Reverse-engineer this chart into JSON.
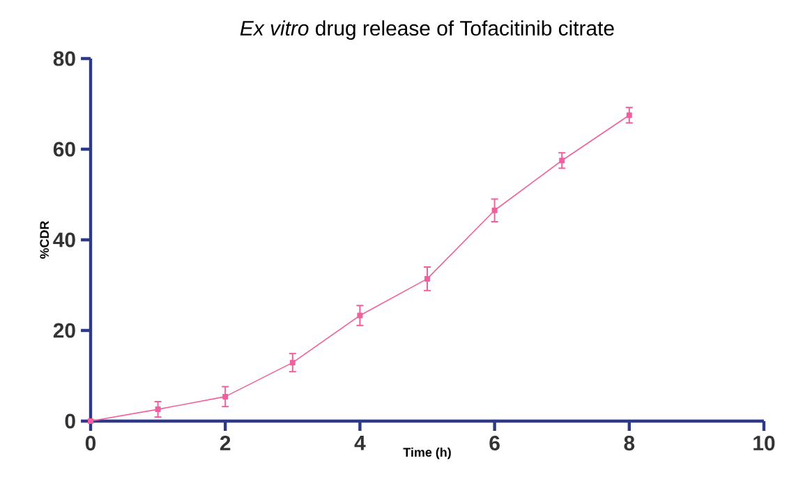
{
  "chart_data": {
    "type": "line",
    "title": "*Ex vitro* drug release of Tofacitinib citrate",
    "xlabel": "Time (h)",
    "ylabel": "%CDR",
    "x": [
      0,
      1,
      2,
      3,
      4,
      5,
      6,
      7,
      8
    ],
    "series": [
      {
        "color": "#f0609e",
        "values": [
          0,
          2.6,
          5.4,
          12.9,
          23.3,
          31.4,
          46.5,
          57.5,
          67.5
        ],
        "errors": [
          null,
          1.7,
          2.2,
          2,
          2.2,
          2.6,
          2.5,
          1.7,
          1.7
        ]
      }
    ],
    "xlim": [
      0,
      10
    ],
    "xticks": [
      0,
      2,
      4,
      6,
      8,
      10
    ],
    "ylim": [
      0,
      80
    ],
    "yticks": [
      0,
      20,
      40,
      60,
      80
    ],
    "marker": "square",
    "line_style": "solid",
    "grid": false
  }
}
